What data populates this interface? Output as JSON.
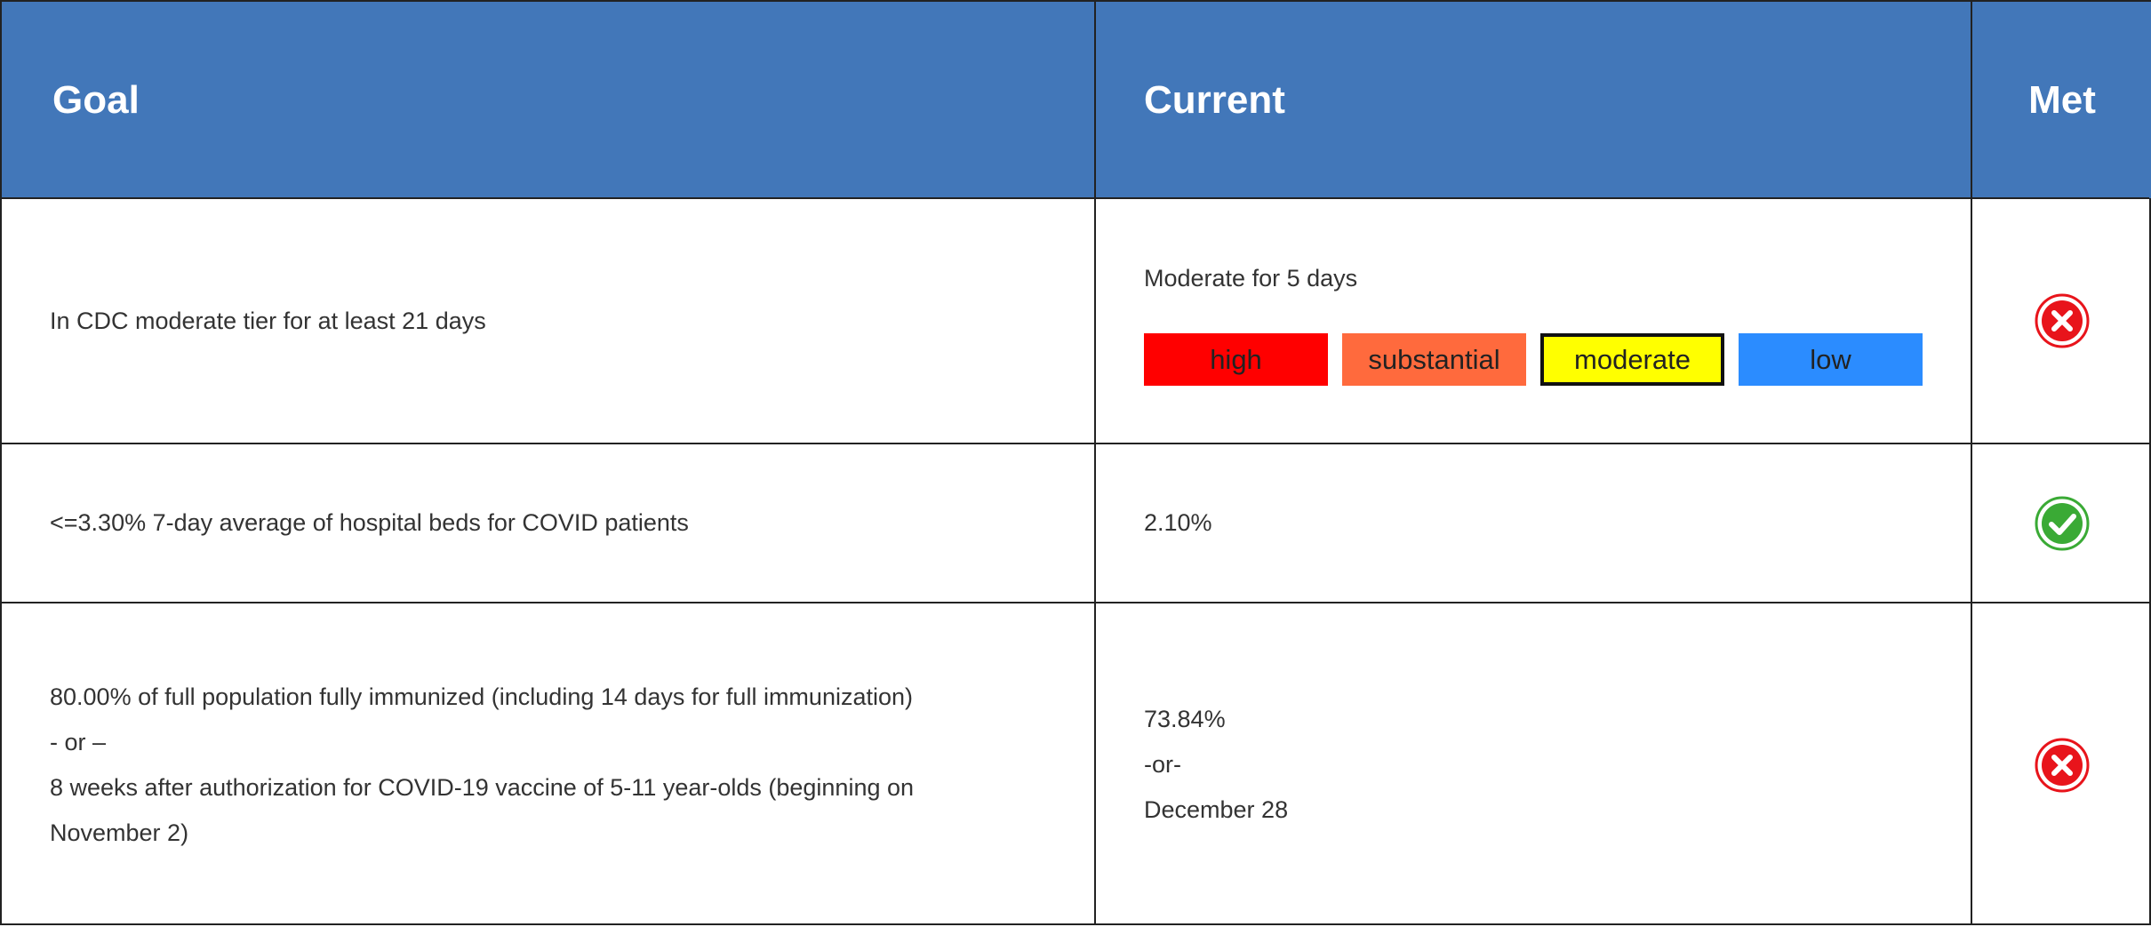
{
  "header": {
    "goal": "Goal",
    "current": "Current",
    "met": "Met"
  },
  "rows": [
    {
      "goal": [
        "In CDC moderate tier for at least 21 days"
      ],
      "current": [
        "Moderate for 5 days"
      ],
      "tiers": [
        {
          "label": "high",
          "color": "#ff0000",
          "highlighted": false
        },
        {
          "label": "substantial",
          "color": "#ff6a3d",
          "highlighted": false
        },
        {
          "label": "moderate",
          "color": "#ffff00",
          "highlighted": true
        },
        {
          "label": "low",
          "color": "#2b8cff",
          "highlighted": false
        }
      ],
      "met": false
    },
    {
      "goal": [
        "<=3.30% 7-day average of hospital beds for COVID patients"
      ],
      "current": [
        "2.10%"
      ],
      "met": true
    },
    {
      "goal": [
        "80.00% of full population fully immunized (including 14 days for full immunization)",
        "- or –",
        "8 weeks after authorization for COVID-19 vaccine of 5-11 year-olds (beginning on November 2)"
      ],
      "current": [
        "73.84%",
        "-or-",
        "December 28"
      ],
      "met": false
    }
  ]
}
